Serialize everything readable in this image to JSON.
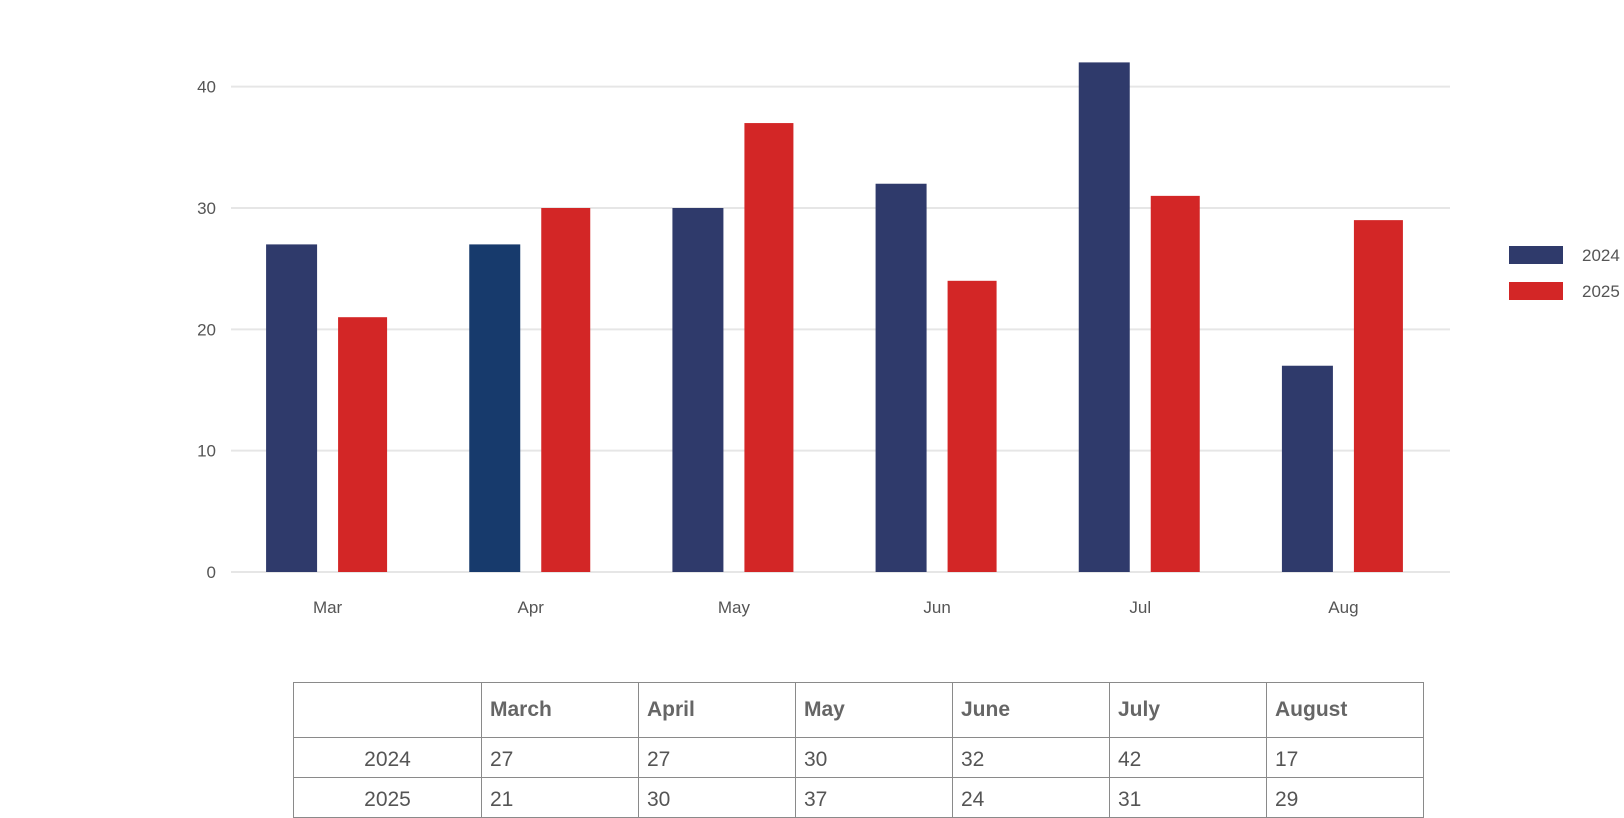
{
  "chart_data": {
    "type": "bar",
    "categories": [
      "Mar",
      "Apr",
      "May",
      "Jun",
      "Jul",
      "Aug"
    ],
    "series": [
      {
        "name": "2024",
        "values": [
          27,
          27,
          30,
          32,
          42,
          17
        ],
        "color": "#2f3a6b"
      },
      {
        "name": "2025",
        "values": [
          21,
          30,
          37,
          24,
          31,
          29
        ],
        "color": "#d32626"
      }
    ],
    "ylim": [
      0,
      45
    ],
    "yticks": [
      0,
      10,
      20,
      30,
      40
    ],
    "grid": true,
    "legend_position": "right",
    "highlight": {
      "category": "Apr",
      "series": "2024",
      "color": "#173a6c"
    },
    "title": "",
    "xlabel": "",
    "ylabel": ""
  },
  "table": {
    "headers": [
      "",
      "March",
      "April",
      "May",
      "June",
      "July",
      "August"
    ],
    "rows": [
      {
        "label": "2024",
        "values": [
          "27",
          "27",
          "30",
          "32",
          "42",
          "17"
        ]
      },
      {
        "label": "2025",
        "values": [
          "21",
          "30",
          "37",
          "24",
          "31",
          "29"
        ]
      }
    ]
  }
}
